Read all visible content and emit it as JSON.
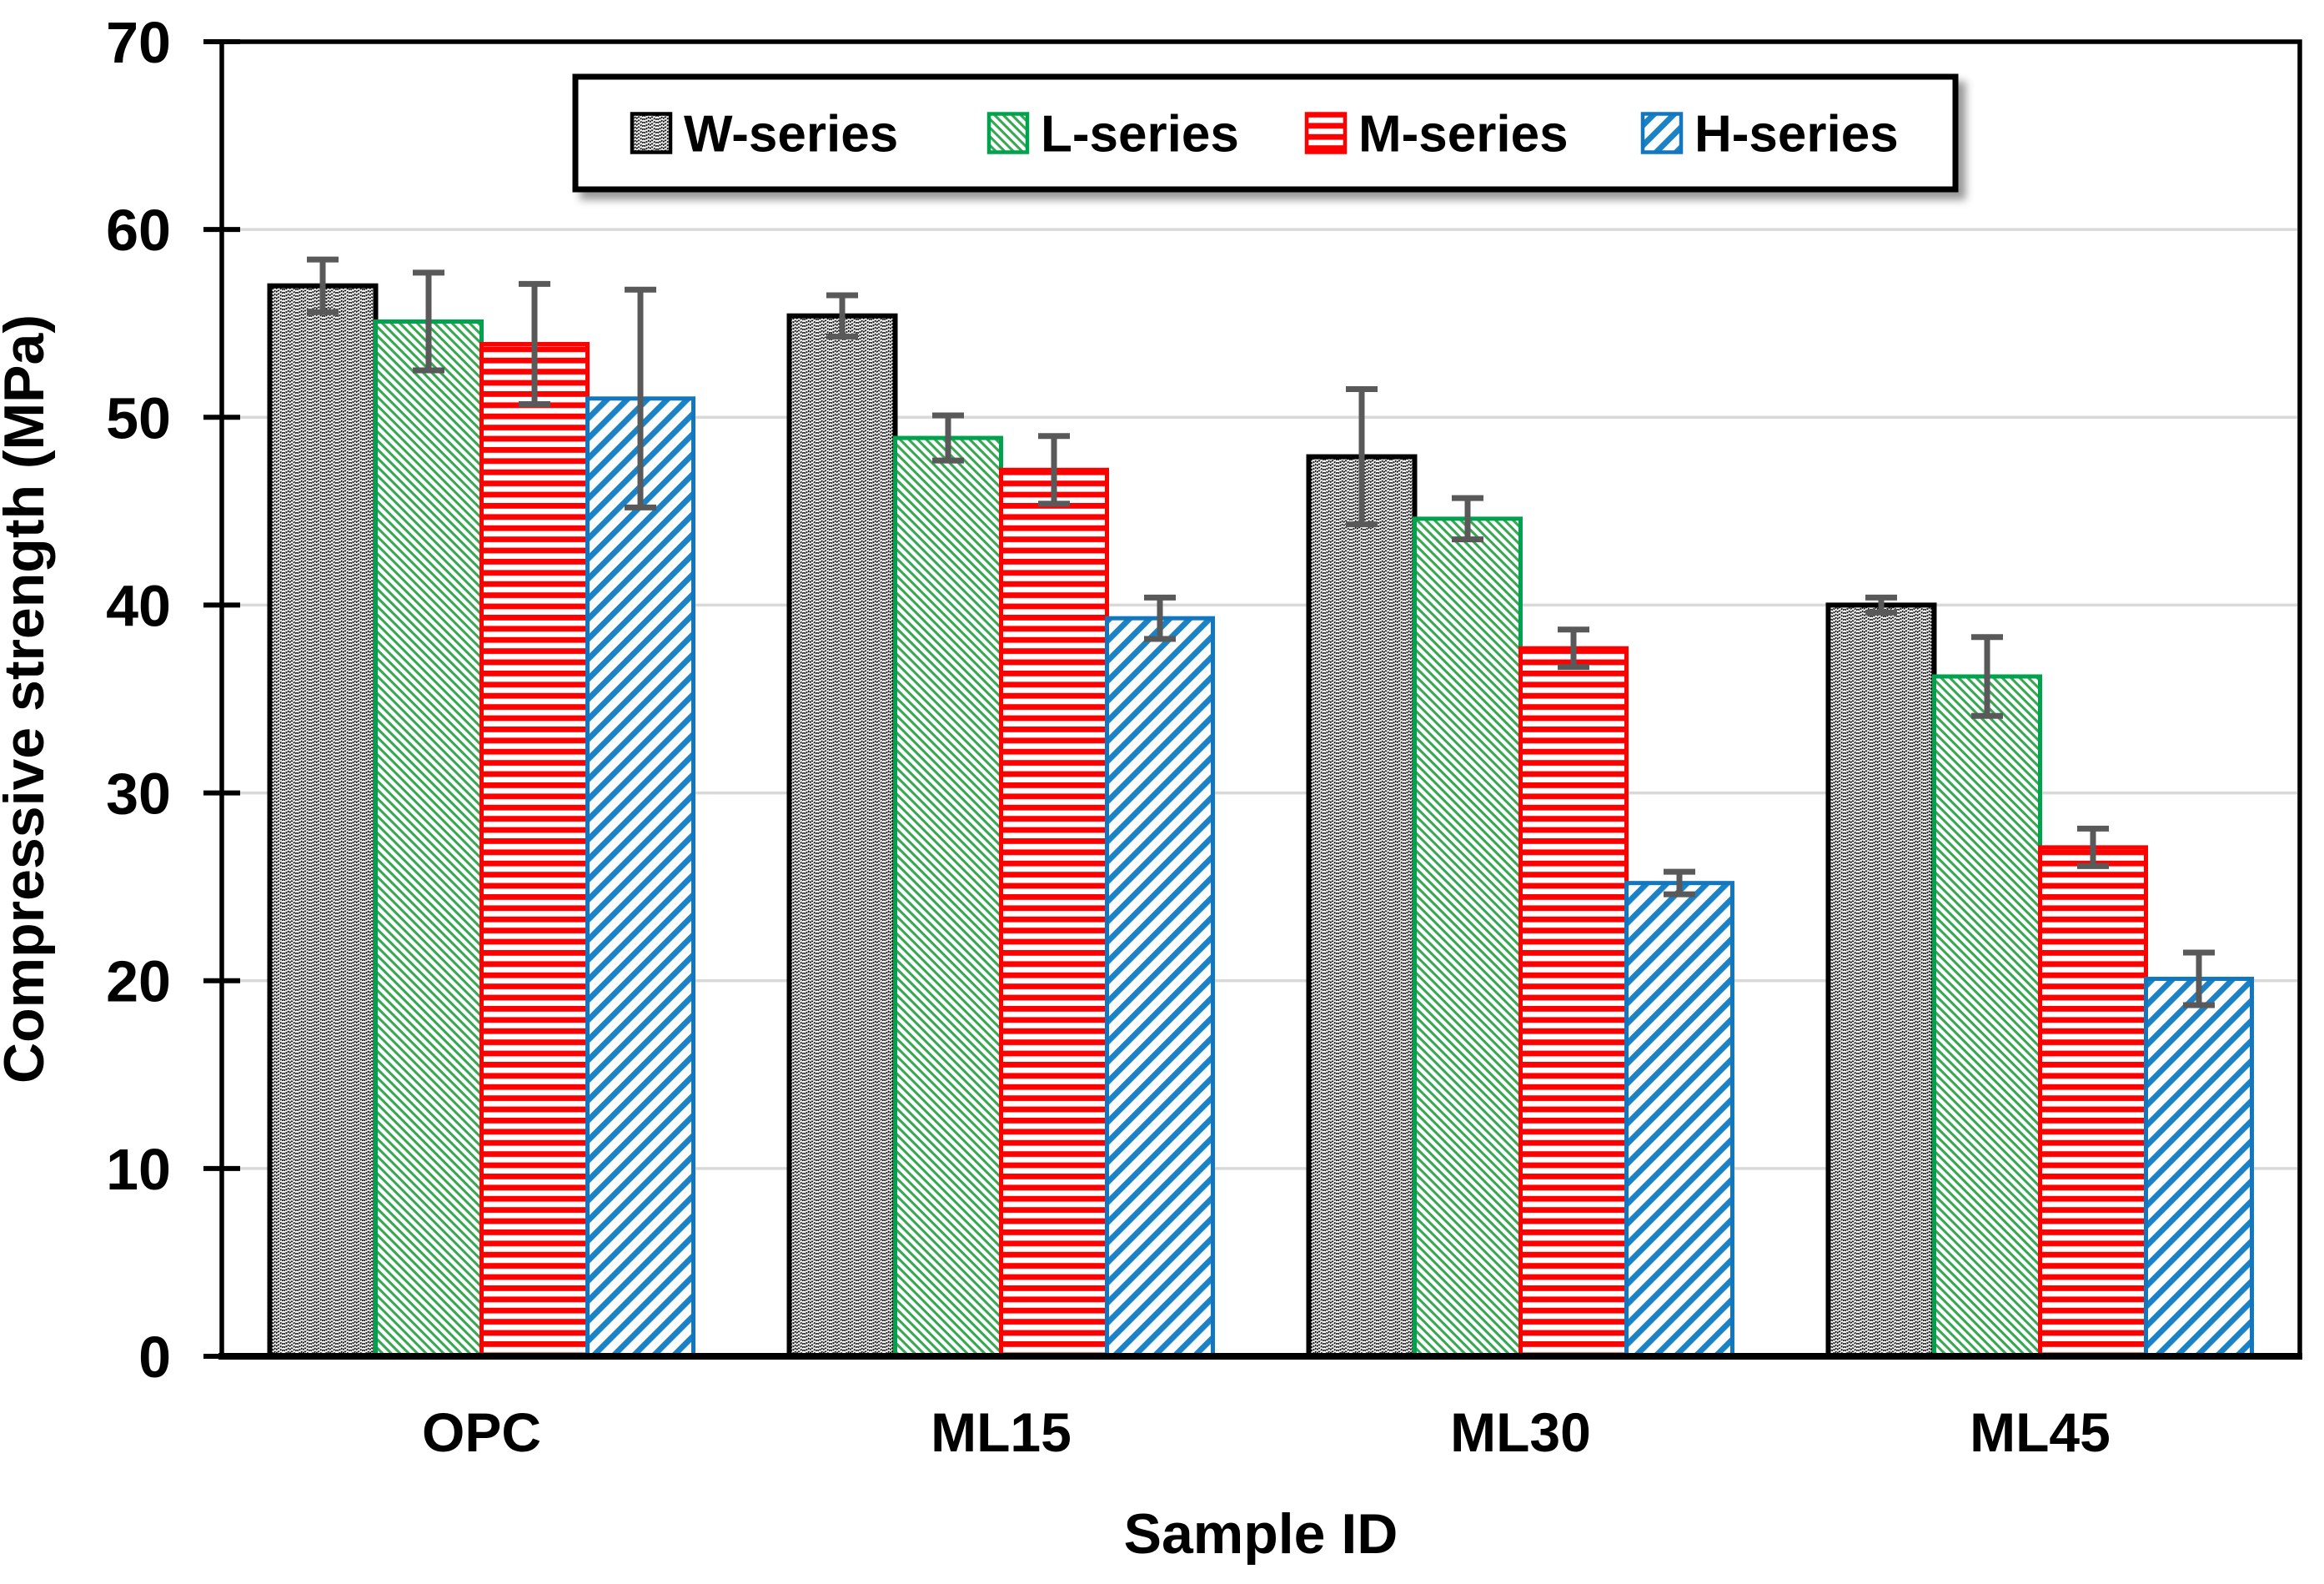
{
  "chart_data": {
    "type": "bar",
    "title": "",
    "xlabel": "Sample ID",
    "ylabel": "Compressive strength (MPa)",
    "categories": [
      "OPC",
      "ML15",
      "ML30",
      "ML45"
    ],
    "series": [
      {
        "name": "W-series",
        "key": "w",
        "pattern": "herringbone-weave",
        "border_color": "#000000",
        "hatch_color": "#111111",
        "values": [
          57.0,
          55.4,
          47.9,
          40.0
        ],
        "errors": [
          1.4,
          1.1,
          3.6,
          0.4
        ]
      },
      {
        "name": "L-series",
        "key": "l",
        "pattern": "diagonal-down-hatch",
        "border_color": "#00A24E",
        "hatch_color": "#38A654",
        "values": [
          55.1,
          48.9,
          44.6,
          36.2
        ],
        "errors": [
          2.6,
          1.2,
          1.1,
          2.1
        ]
      },
      {
        "name": "M-series",
        "key": "m",
        "pattern": "horizontal-stripes",
        "border_color": "#FE0000",
        "hatch_color": "#FE0000",
        "values": [
          53.9,
          47.2,
          37.7,
          27.1
        ],
        "errors": [
          3.2,
          1.8,
          1.0,
          1.0
        ]
      },
      {
        "name": "H-series",
        "key": "h",
        "pattern": "diagonal-up-hatch",
        "border_color": "#1277BE",
        "hatch_color": "#1B82C6",
        "values": [
          51.0,
          39.3,
          25.2,
          20.1
        ],
        "errors": [
          5.8,
          1.1,
          0.6,
          1.4
        ]
      }
    ],
    "ylim": [
      0,
      70
    ],
    "yticks": [
      0,
      10,
      20,
      30,
      40,
      50,
      60,
      70
    ],
    "grid": "horizontal",
    "gridline_color": "#D9D9D9",
    "error_bar_color": "#595959",
    "axis_color": "#000000",
    "legend": {
      "position": "top-center",
      "entries": [
        "W-series",
        "L-series",
        "M-series",
        "H-series"
      ]
    }
  }
}
